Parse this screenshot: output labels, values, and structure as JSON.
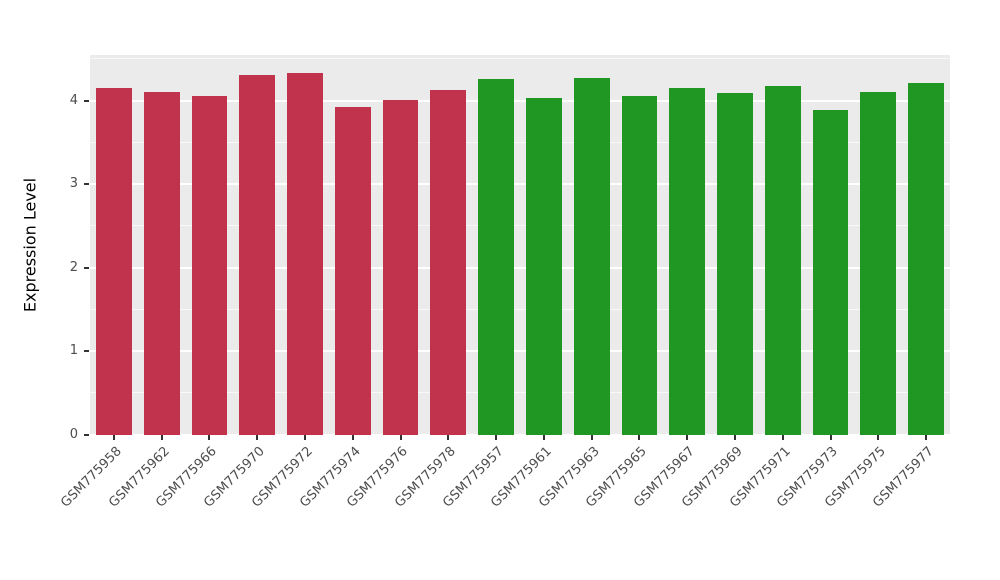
{
  "chart_data": {
    "type": "bar",
    "title": "",
    "xlabel": "",
    "ylabel": "Expression Level",
    "ylim": [
      0,
      4.55
    ],
    "yticks": [
      0,
      1,
      2,
      3,
      4
    ],
    "grid": true,
    "legend": false,
    "panel_background": "#EBEBEB",
    "gridline_color": "#FFFFFF",
    "tick_label_color": "#4D4D4D",
    "categories": [
      "GSM775958",
      "GSM775962",
      "GSM775966",
      "GSM775970",
      "GSM775972",
      "GSM775974",
      "GSM775976",
      "GSM775978",
      "GSM775957",
      "GSM775961",
      "GSM775963",
      "GSM775965",
      "GSM775967",
      "GSM775969",
      "GSM775971",
      "GSM775973",
      "GSM775975",
      "GSM775977"
    ],
    "values": [
      4.16,
      4.11,
      4.06,
      4.31,
      4.33,
      3.93,
      4.01,
      4.13,
      4.26,
      4.03,
      4.28,
      4.06,
      4.16,
      4.09,
      4.18,
      3.89,
      4.11,
      4.21
    ],
    "groups": [
      "red",
      "red",
      "red",
      "red",
      "red",
      "red",
      "red",
      "red",
      "green",
      "green",
      "green",
      "green",
      "green",
      "green",
      "green",
      "green",
      "green",
      "green"
    ],
    "colors": {
      "red": "#C1334D",
      "green": "#1F9722"
    }
  }
}
